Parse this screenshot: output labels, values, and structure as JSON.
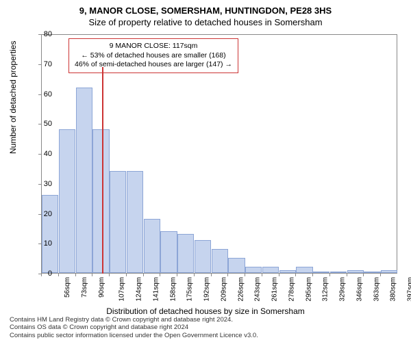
{
  "header": {
    "address": "9, MANOR CLOSE, SOMERSHAM, HUNTINGDON, PE28 3HS",
    "subtitle": "Size of property relative to detached houses in Somersham"
  },
  "chart": {
    "type": "histogram",
    "ylabel": "Number of detached properties",
    "xlabel": "Distribution of detached houses by size in Somersham",
    "ylim": [
      0,
      80
    ],
    "ytick_step": 10,
    "yticks": [
      0,
      10,
      20,
      30,
      40,
      50,
      60,
      70,
      80
    ],
    "xticks": [
      "56sqm",
      "73sqm",
      "90sqm",
      "107sqm",
      "124sqm",
      "141sqm",
      "158sqm",
      "175sqm",
      "192sqm",
      "209sqm",
      "226sqm",
      "243sqm",
      "261sqm",
      "278sqm",
      "295sqm",
      "312sqm",
      "329sqm",
      "346sqm",
      "363sqm",
      "380sqm",
      "397sqm"
    ],
    "bar_values": [
      26,
      48,
      62,
      48,
      34,
      34,
      18,
      14,
      13,
      11,
      8,
      5,
      2,
      2,
      1,
      2,
      0,
      0,
      1,
      0,
      1
    ],
    "bar_color": "#c6d4ee",
    "bar_border": "#8ca5d6",
    "background_color": "#ffffff",
    "axis_color": "#888888",
    "label_fontsize": 12,
    "tick_fontsize": 11
  },
  "annotation": {
    "line1": "9 MANOR CLOSE: 117sqm",
    "line2": "← 53% of detached houses are smaller (168)",
    "line3": "46% of semi-detached houses are larger (147) →",
    "box_border_color": "#cc3333",
    "marker_x_value": 117,
    "marker_color": "#cc3333"
  },
  "footer": {
    "line1": "Contains HM Land Registry data © Crown copyright and database right 2024.",
    "line2": "Contains OS data © Crown copyright and database right 2024",
    "line3": "Contains public sector information licensed under the Open Government Licence v3.0."
  }
}
